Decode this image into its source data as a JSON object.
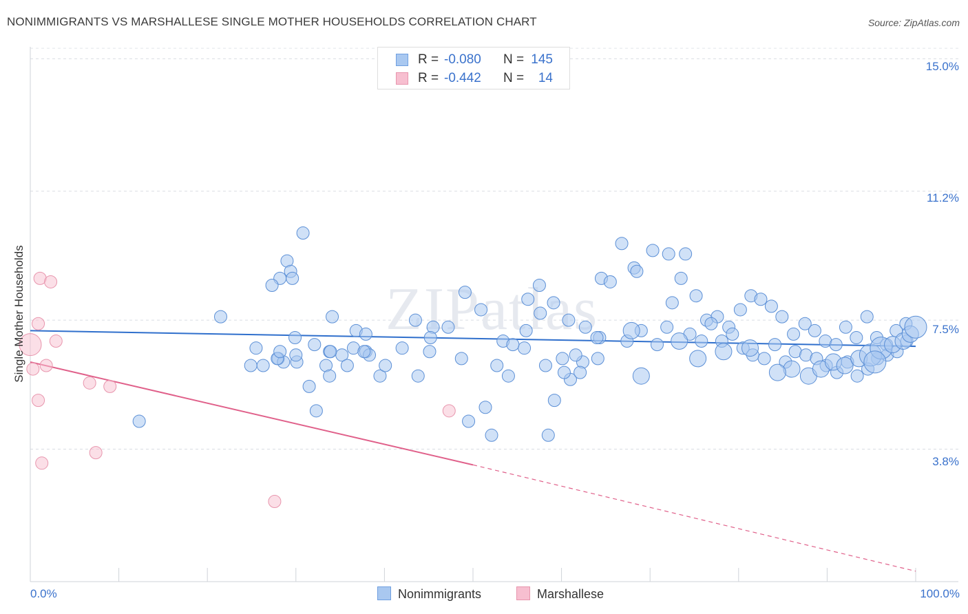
{
  "title": "NONIMMIGRANTS VS MARSHALLESE SINGLE MOTHER HOUSEHOLDS CORRELATION CHART",
  "source": "Source: ZipAtlas.com",
  "watermark": "ZIPatlas",
  "legend": {
    "rows": [
      {
        "r_label": "R =",
        "r_value": "-0.080",
        "n_label": "N =",
        "n_value": "145",
        "color": "#a9c8f0",
        "border": "#6f9fe0"
      },
      {
        "r_label": "R =",
        "r_value": "-0.442",
        "n_label": "N =",
        "n_value": "14",
        "color": "#f7bfd0",
        "border": "#e895ad"
      }
    ]
  },
  "bottom_legend": [
    {
      "label": "Nonimmigrants",
      "color": "#a9c8f0",
      "border": "#6f9fe0"
    },
    {
      "label": "Marshallese",
      "color": "#f7bfd0",
      "border": "#e895ad"
    }
  ],
  "chart_data": {
    "type": "scatter",
    "title": "NONIMMIGRANTS VS MARSHALLESE SINGLE MOTHER HOUSEHOLDS CORRELATION CHART",
    "xlabel": "",
    "ylabel": "Single Mother Households",
    "xlim": [
      0,
      100
    ],
    "ylim": [
      0,
      15.5
    ],
    "x_tick_labels": [
      "0.0%",
      "100.0%"
    ],
    "y_ticks": [
      3.8,
      7.5,
      11.2,
      15.0
    ],
    "y_tick_labels": [
      "3.8%",
      "7.5%",
      "11.2%",
      "15.0%"
    ],
    "grid": true,
    "legend_placement": "top-center",
    "series": [
      {
        "name": "Nonimmigrants",
        "color": "#a9c8f0",
        "stroke": "#5b8fd6",
        "line_color": "#2f6fcc",
        "trend": {
          "x0": 0,
          "y0": 7.2,
          "x1": 100,
          "y1": 6.75
        },
        "points": [
          [
            12.3,
            4.6,
            1
          ],
          [
            21.5,
            7.6,
            1
          ],
          [
            24.9,
            6.2,
            1
          ],
          [
            25.5,
            6.7,
            1
          ],
          [
            28.2,
            8.7,
            1
          ],
          [
            29.0,
            9.2,
            1
          ],
          [
            29.4,
            8.9,
            1
          ],
          [
            27.3,
            8.5,
            1
          ],
          [
            29.6,
            8.7,
            1
          ],
          [
            28.0,
            6.4,
            1
          ],
          [
            29.9,
            7.0,
            1
          ],
          [
            28.6,
            6.3,
            1
          ],
          [
            27.9,
            6.4,
            1
          ],
          [
            30.1,
            6.3,
            1
          ],
          [
            32.3,
            4.9,
            1
          ],
          [
            28.2,
            6.6,
            1
          ],
          [
            32.1,
            6.8,
            1
          ],
          [
            30.8,
            10.0,
            1
          ],
          [
            34.1,
            7.6,
            1
          ],
          [
            33.8,
            6.6,
            1
          ],
          [
            30.0,
            6.5,
            1
          ],
          [
            33.4,
            6.2,
            1
          ],
          [
            35.2,
            6.5,
            1
          ],
          [
            36.5,
            6.7,
            1
          ],
          [
            37.9,
            6.6,
            1
          ],
          [
            38.3,
            6.5,
            1
          ],
          [
            36.8,
            7.2,
            1
          ],
          [
            37.7,
            6.6,
            1
          ],
          [
            39.5,
            5.9,
            1
          ],
          [
            40.1,
            6.2,
            1
          ],
          [
            42.0,
            6.7,
            1
          ],
          [
            43.8,
            5.9,
            1
          ],
          [
            43.5,
            7.5,
            1
          ],
          [
            45.5,
            7.3,
            1
          ],
          [
            45.1,
            6.6,
            1
          ],
          [
            49.5,
            4.6,
            1
          ],
          [
            51.4,
            5.0,
            1
          ],
          [
            52.1,
            4.2,
            1
          ],
          [
            53.4,
            6.9,
            1
          ],
          [
            56.0,
            7.2,
            1
          ],
          [
            58.5,
            4.2,
            1
          ],
          [
            59.2,
            5.2,
            1
          ],
          [
            60.1,
            6.4,
            1
          ],
          [
            61.0,
            5.8,
            1
          ],
          [
            62.4,
            6.3,
            1
          ],
          [
            64.3,
            7.0,
            1
          ],
          [
            64.5,
            8.7,
            1
          ],
          [
            65.5,
            8.6,
            1
          ],
          [
            66.8,
            9.7,
            1
          ],
          [
            68.2,
            9.0,
            1
          ],
          [
            68.5,
            8.9,
            1
          ],
          [
            70.3,
            9.5,
            1
          ],
          [
            72.1,
            9.4,
            1
          ],
          [
            73.5,
            8.7,
            1
          ],
          [
            74.0,
            9.4,
            1
          ],
          [
            72.5,
            8.0,
            1
          ],
          [
            75.2,
            8.2,
            1
          ],
          [
            76.4,
            7.5,
            1
          ],
          [
            77.6,
            7.6,
            1
          ],
          [
            78.9,
            7.3,
            1
          ],
          [
            80.2,
            7.8,
            1
          ],
          [
            81.4,
            8.2,
            1
          ],
          [
            82.5,
            8.1,
            1
          ],
          [
            83.7,
            7.9,
            1
          ],
          [
            84.9,
            7.6,
            1
          ],
          [
            86.2,
            7.1,
            1
          ],
          [
            87.5,
            7.4,
            1
          ],
          [
            88.6,
            7.2,
            1
          ],
          [
            89.8,
            6.9,
            1
          ],
          [
            91.0,
            6.8,
            1
          ],
          [
            92.1,
            7.3,
            1
          ],
          [
            93.3,
            7.0,
            1
          ],
          [
            94.5,
            7.6,
            1
          ],
          [
            95.6,
            7.0,
            1
          ],
          [
            96.7,
            6.8,
            1
          ],
          [
            97.8,
            7.2,
            1
          ],
          [
            98.9,
            7.4,
            1
          ],
          [
            37.9,
            7.1,
            1
          ],
          [
            33.9,
            6.6,
            1
          ],
          [
            45.2,
            7.0,
            1
          ],
          [
            58.2,
            6.2,
            1
          ],
          [
            55.8,
            6.7,
            1
          ],
          [
            48.7,
            6.4,
            1
          ],
          [
            54.0,
            5.9,
            1
          ],
          [
            57.6,
            7.7,
            1
          ],
          [
            60.3,
            6.0,
            1
          ],
          [
            61.6,
            6.5,
            1
          ],
          [
            62.7,
            7.3,
            1
          ],
          [
            64.0,
            7.0,
            1
          ],
          [
            67.4,
            6.9,
            1
          ],
          [
            69.0,
            7.2,
            1
          ],
          [
            70.8,
            6.8,
            1
          ],
          [
            71.9,
            7.3,
            1
          ],
          [
            74.5,
            7.1,
            1
          ],
          [
            75.8,
            6.9,
            1
          ],
          [
            76.9,
            7.4,
            1
          ],
          [
            78.1,
            6.9,
            1
          ],
          [
            79.3,
            7.1,
            1
          ],
          [
            80.5,
            6.7,
            1
          ],
          [
            81.6,
            6.5,
            1
          ],
          [
            82.9,
            6.4,
            1
          ],
          [
            84.1,
            6.8,
            1
          ],
          [
            85.3,
            6.3,
            1
          ],
          [
            86.4,
            6.6,
            1
          ],
          [
            87.6,
            6.5,
            1
          ],
          [
            88.8,
            6.4,
            1
          ],
          [
            89.9,
            6.2,
            1
          ],
          [
            91.1,
            6.0,
            1
          ],
          [
            92.3,
            6.3,
            1
          ],
          [
            93.4,
            5.9,
            1
          ],
          [
            94.6,
            6.1,
            1
          ],
          [
            95.7,
            6.4,
            1
          ],
          [
            96.8,
            6.5,
            1
          ],
          [
            97.9,
            6.6,
            1
          ],
          [
            99.0,
            6.9,
            1
          ],
          [
            86.0,
            6.1,
            2
          ],
          [
            87.9,
            5.9,
            2
          ],
          [
            89.3,
            6.1,
            2
          ],
          [
            90.7,
            6.3,
            2
          ],
          [
            92.0,
            6.2,
            2
          ],
          [
            93.6,
            6.4,
            2
          ],
          [
            94.9,
            6.5,
            3
          ],
          [
            96.1,
            6.7,
            3
          ],
          [
            97.4,
            6.8,
            2
          ],
          [
            98.6,
            6.9,
            2
          ],
          [
            99.4,
            7.1,
            2
          ],
          [
            100.0,
            7.3,
            3
          ],
          [
            95.4,
            6.3,
            3
          ],
          [
            84.4,
            6.0,
            2
          ],
          [
            81.3,
            6.7,
            2
          ],
          [
            78.3,
            6.6,
            2
          ],
          [
            75.4,
            6.4,
            2
          ],
          [
            73.3,
            6.9,
            2
          ],
          [
            69.0,
            5.9,
            2
          ],
          [
            67.9,
            7.2,
            2
          ],
          [
            64.1,
            6.4,
            1
          ],
          [
            62.1,
            6.0,
            1
          ],
          [
            60.8,
            7.5,
            1
          ],
          [
            59.1,
            8.0,
            1
          ],
          [
            57.5,
            8.5,
            1
          ],
          [
            56.2,
            8.1,
            1
          ],
          [
            54.5,
            6.8,
            1
          ],
          [
            52.7,
            6.2,
            1
          ],
          [
            50.9,
            7.8,
            1
          ],
          [
            49.1,
            8.3,
            1
          ],
          [
            47.2,
            7.3,
            1
          ],
          [
            35.8,
            6.2,
            1
          ],
          [
            33.8,
            5.9,
            1
          ],
          [
            31.5,
            5.6,
            1
          ],
          [
            26.3,
            6.2,
            1
          ]
        ]
      },
      {
        "name": "Marshallese",
        "color": "#f7bfd0",
        "stroke": "#e895ad",
        "line_color": "#e0608a",
        "trend": {
          "x0": 0,
          "y0": 6.3,
          "x1": 50,
          "y1": 3.35
        },
        "trend_dashed": {
          "x0": 50,
          "y0": 3.35,
          "x1": 100,
          "y1": 0.3
        },
        "points": [
          [
            0.0,
            6.8,
            3
          ],
          [
            0.3,
            6.1,
            1
          ],
          [
            1.1,
            8.7,
            1
          ],
          [
            2.3,
            8.6,
            1
          ],
          [
            0.9,
            7.4,
            1
          ],
          [
            2.9,
            6.9,
            1
          ],
          [
            1.8,
            6.2,
            1
          ],
          [
            6.7,
            5.7,
            1
          ],
          [
            9.0,
            5.6,
            1
          ],
          [
            0.9,
            5.2,
            1
          ],
          [
            7.4,
            3.7,
            1
          ],
          [
            1.3,
            3.4,
            1
          ],
          [
            27.6,
            2.3,
            1
          ],
          [
            47.3,
            4.9,
            1
          ]
        ]
      }
    ]
  }
}
